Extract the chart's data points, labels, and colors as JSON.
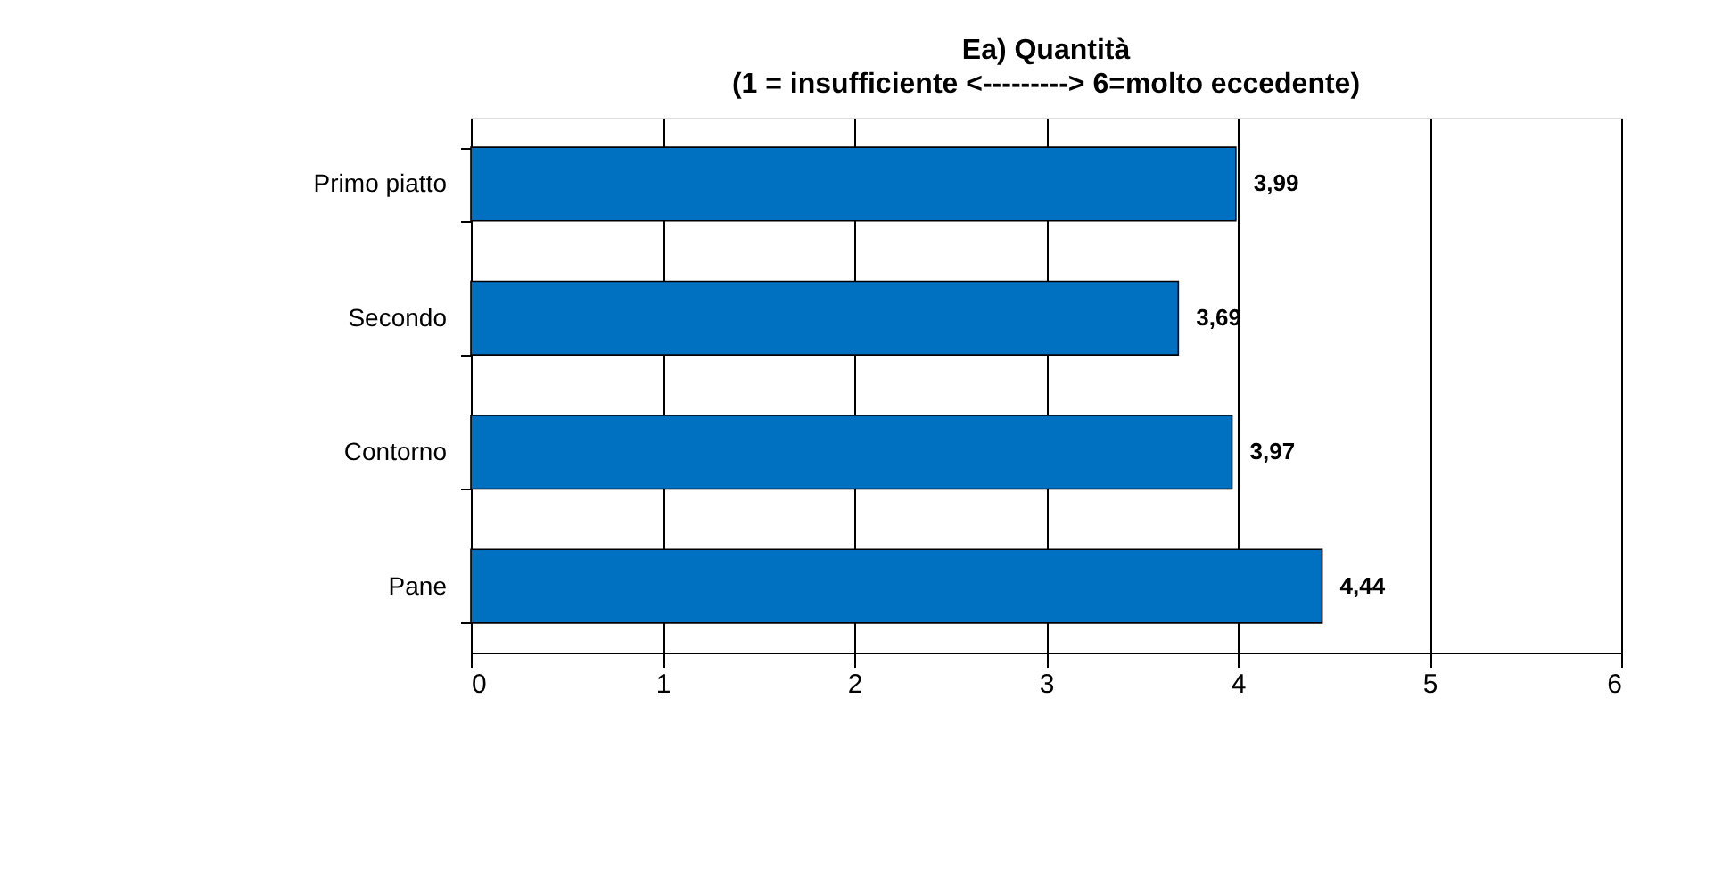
{
  "chart_data": {
    "type": "bar",
    "orientation": "horizontal",
    "title": "Ea) Quantità",
    "subtitle": "(1 = insufficiente <---------> 6=molto eccedente)",
    "categories": [
      "Primo piatto",
      "Secondo",
      "Contorno",
      "Pane"
    ],
    "values": [
      3.99,
      3.69,
      3.97,
      4.44
    ],
    "value_labels": [
      "3,99",
      "3,69",
      "3,97",
      "4,44"
    ],
    "color": "#0070c0",
    "xlim": [
      0,
      6
    ],
    "xticks": [
      0,
      1,
      2,
      3,
      4,
      5,
      6
    ],
    "grid": "x"
  }
}
